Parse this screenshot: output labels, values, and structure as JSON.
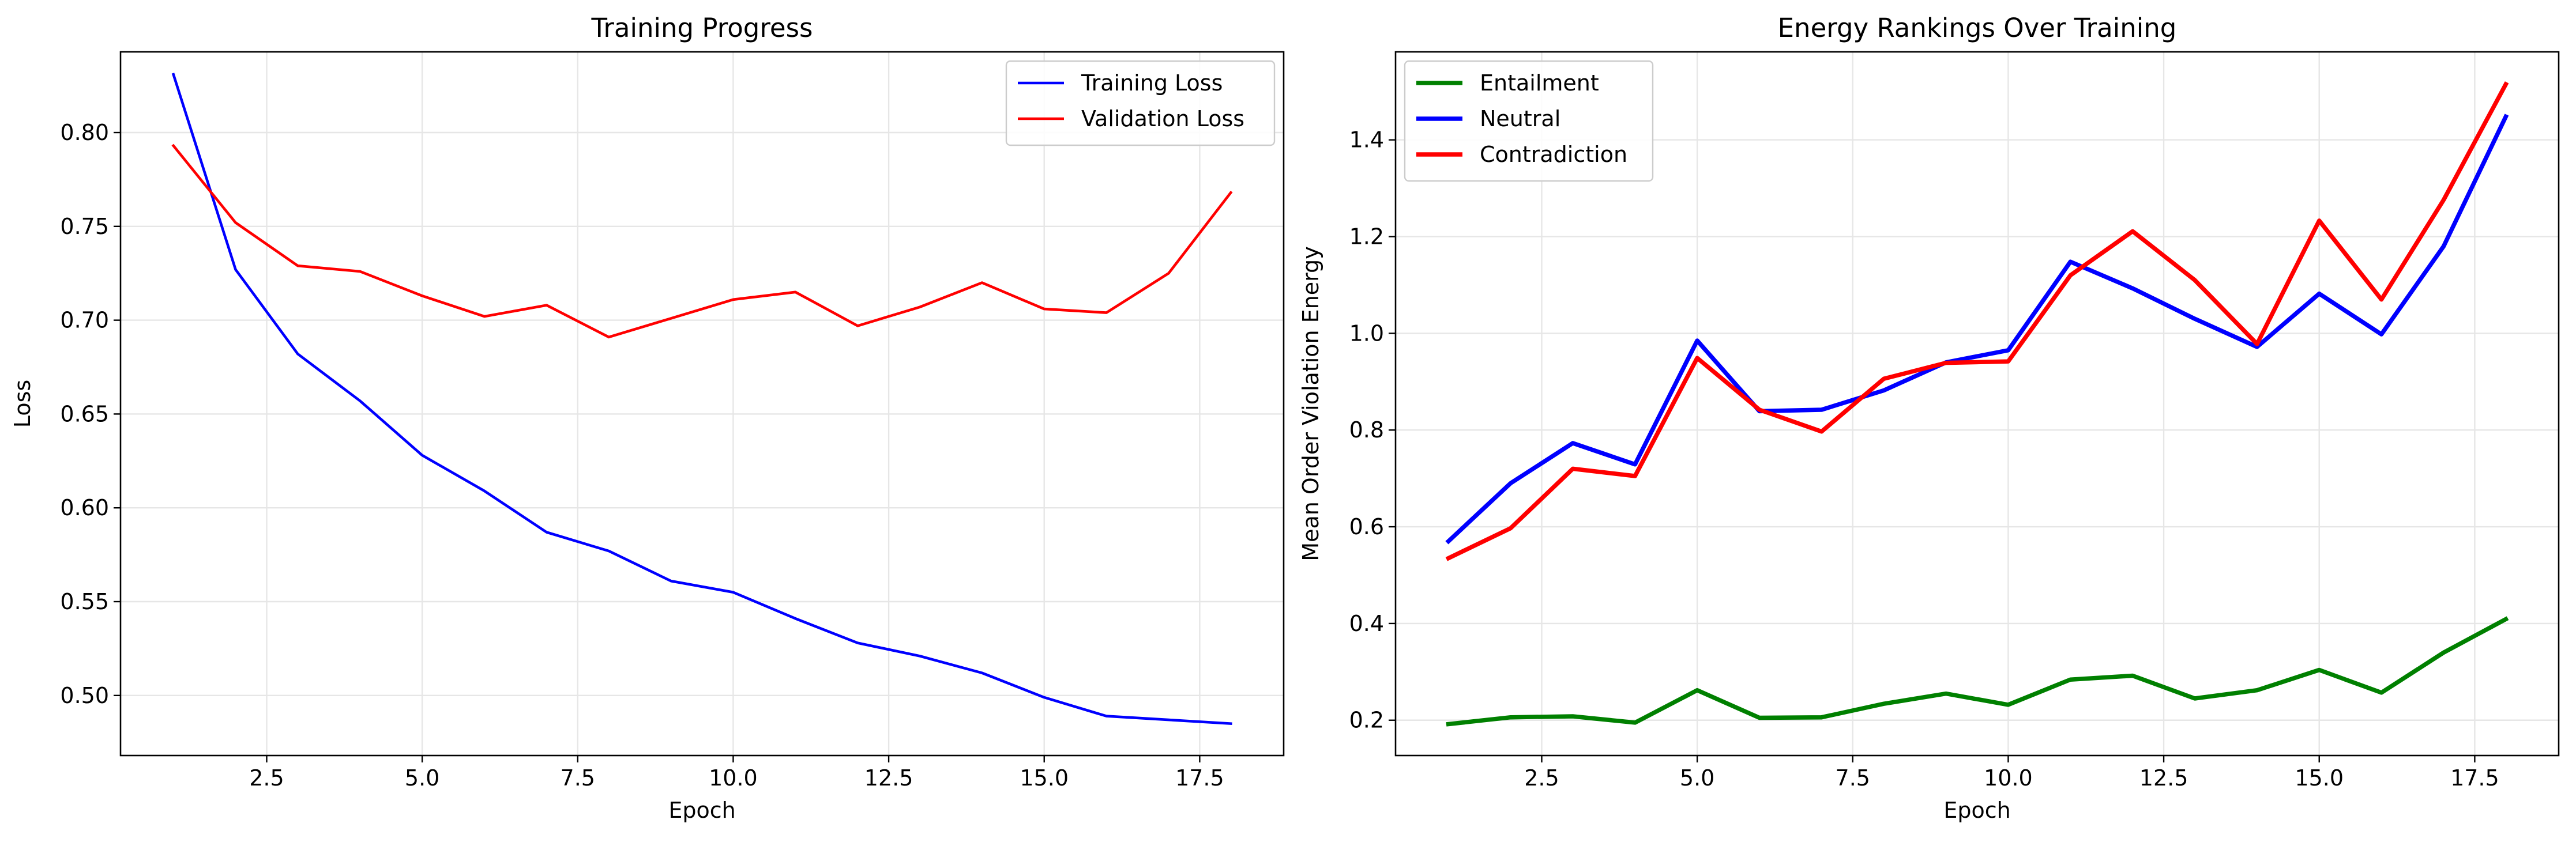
{
  "chart_data": [
    {
      "type": "line",
      "title": "Training Progress",
      "xlabel": "Epoch",
      "ylabel": "Loss",
      "x": [
        1,
        2,
        3,
        4,
        5,
        6,
        7,
        8,
        9,
        10,
        11,
        12,
        13,
        14,
        15,
        16,
        17,
        18
      ],
      "xlim": [
        0.15,
        18.85
      ],
      "ylim": [
        0.468,
        0.843
      ],
      "xticks": [
        2.5,
        5.0,
        7.5,
        10.0,
        12.5,
        15.0,
        17.5
      ],
      "xtick_labels": [
        "2.5",
        "5.0",
        "7.5",
        "10.0",
        "12.5",
        "15.0",
        "17.5"
      ],
      "yticks": [
        0.5,
        0.55,
        0.6,
        0.65,
        0.7,
        0.75,
        0.8
      ],
      "ytick_labels": [
        "0.50",
        "0.55",
        "0.60",
        "0.65",
        "0.70",
        "0.75",
        "0.80"
      ],
      "grid": true,
      "legend_position": "top-right",
      "series": [
        {
          "name": "Training Loss",
          "color": "#0000ff",
          "values": [
            0.831,
            0.727,
            0.682,
            0.657,
            0.628,
            0.609,
            0.587,
            0.577,
            0.561,
            0.555,
            0.541,
            0.528,
            0.521,
            0.512,
            0.499,
            0.489,
            0.487,
            0.485
          ]
        },
        {
          "name": "Validation Loss",
          "color": "#ff0000",
          "values": [
            0.793,
            0.752,
            0.729,
            0.726,
            0.713,
            0.702,
            0.708,
            0.691,
            0.701,
            0.711,
            0.715,
            0.697,
            0.707,
            0.72,
            0.706,
            0.704,
            0.725,
            0.768
          ]
        }
      ]
    },
    {
      "type": "line",
      "title": "Energy Rankings Over Training",
      "xlabel": "Epoch",
      "ylabel": "Mean Order Violation Energy",
      "x": [
        1,
        2,
        3,
        4,
        5,
        6,
        7,
        8,
        9,
        10,
        11,
        12,
        13,
        14,
        15,
        16,
        17,
        18
      ],
      "xlim": [
        0.15,
        18.85
      ],
      "ylim": [
        0.127,
        1.582
      ],
      "xticks": [
        2.5,
        5.0,
        7.5,
        10.0,
        12.5,
        15.0,
        17.5
      ],
      "xtick_labels": [
        "2.5",
        "5.0",
        "7.5",
        "10.0",
        "12.5",
        "15.0",
        "17.5"
      ],
      "yticks": [
        0.2,
        0.4,
        0.6,
        0.8,
        1.0,
        1.2,
        1.4
      ],
      "ytick_labels": [
        "0.2",
        "0.4",
        "0.6",
        "0.8",
        "1.0",
        "1.2",
        "1.4"
      ],
      "grid": true,
      "legend_position": "top-left",
      "series": [
        {
          "name": "Entailment",
          "color": "#008000",
          "values": [
            0.192,
            0.206,
            0.208,
            0.195,
            0.262,
            0.205,
            0.206,
            0.234,
            0.255,
            0.232,
            0.284,
            0.292,
            0.245,
            0.262,
            0.304,
            0.257,
            0.34,
            0.409
          ]
        },
        {
          "name": "Neutral",
          "color": "#0000ff",
          "values": [
            0.57,
            0.69,
            0.773,
            0.729,
            0.985,
            0.839,
            0.842,
            0.882,
            0.94,
            0.965,
            1.148,
            1.093,
            1.03,
            0.972,
            1.082,
            0.998,
            1.18,
            1.448
          ]
        },
        {
          "name": "Contradiction",
          "color": "#ff0000",
          "values": [
            0.535,
            0.597,
            0.72,
            0.705,
            0.949,
            0.842,
            0.797,
            0.906,
            0.939,
            0.942,
            1.12,
            1.211,
            1.11,
            0.978,
            1.233,
            1.07,
            1.276,
            1.515
          ]
        }
      ]
    }
  ]
}
